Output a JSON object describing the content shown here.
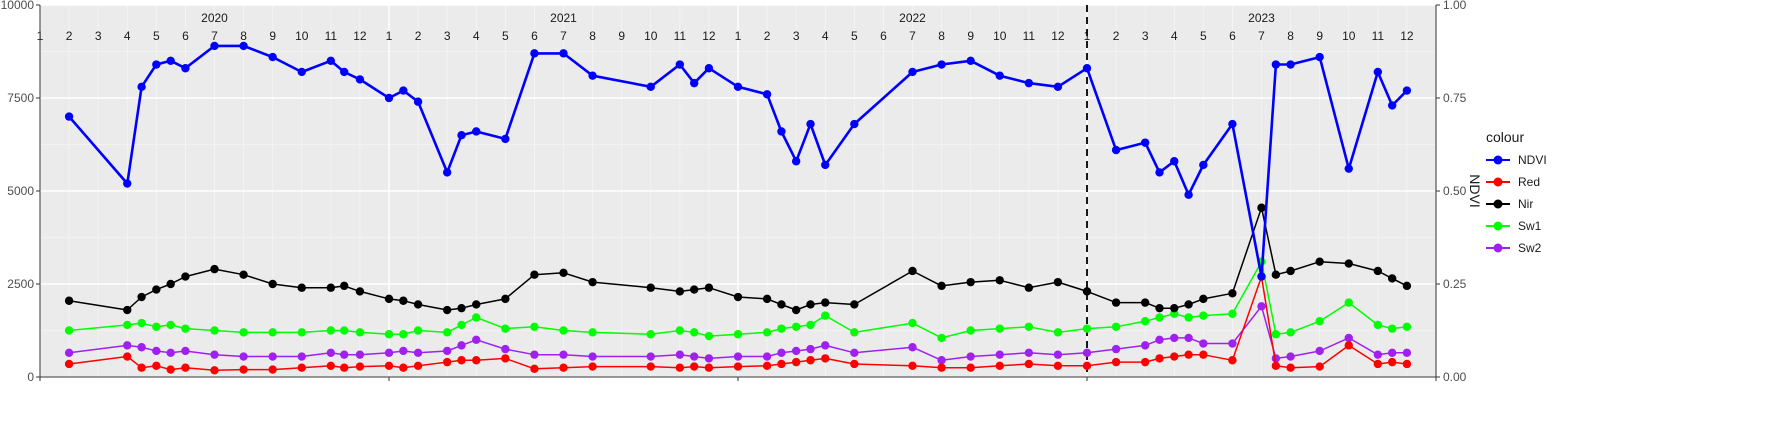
{
  "chart_data": {
    "type": "line",
    "ylabel_right": "NDVI",
    "y_left_ticks": [
      "0",
      "2500",
      "5000",
      "7500",
      "10000"
    ],
    "y_left_lim": [
      0,
      10000
    ],
    "y_right_ticks": [
      "0.00",
      "0.25",
      "0.50",
      "0.75",
      "1.00"
    ],
    "y_right_lim": [
      0,
      1
    ],
    "x_lim": [
      "2020-01-01",
      "2024-01-01"
    ],
    "years": [
      "2020",
      "2021",
      "2022",
      "2023"
    ],
    "months": [
      "1",
      "2",
      "3",
      "4",
      "5",
      "6",
      "7",
      "8",
      "9",
      "10",
      "11",
      "12"
    ],
    "vline_date": "2023-01-01",
    "legend": {
      "title": "colour",
      "placement": "right",
      "items": [
        {
          "label": "NDVI",
          "color": "#0000FF"
        },
        {
          "label": "Red",
          "color": "#FF0000"
        },
        {
          "label": "Nir",
          "color": "#000000"
        },
        {
          "label": "Sw1",
          "color": "#00FF00"
        },
        {
          "label": "Sw2",
          "color": "#A020F0"
        }
      ]
    },
    "dates": [
      "2020-02-01",
      "2020-04-01",
      "2020-04-16",
      "2020-05-01",
      "2020-05-16",
      "2020-06-01",
      "2020-07-01",
      "2020-08-01",
      "2020-09-01",
      "2020-10-01",
      "2020-11-01",
      "2020-11-15",
      "2020-12-01",
      "2021-01-01",
      "2021-01-16",
      "2021-02-01",
      "2021-03-01",
      "2021-03-16",
      "2021-04-01",
      "2021-05-01",
      "2021-06-01",
      "2021-07-01",
      "2021-08-01",
      "2021-10-01",
      "2021-11-01",
      "2021-11-16",
      "2021-12-01",
      "2022-01-01",
      "2022-02-01",
      "2022-02-16",
      "2022-03-01",
      "2022-03-16",
      "2022-04-01",
      "2022-05-01",
      "2022-07-01",
      "2022-08-01",
      "2022-09-01",
      "2022-10-01",
      "2022-11-01",
      "2022-12-01",
      "2023-01-01",
      "2023-02-01",
      "2023-03-01",
      "2023-03-16",
      "2023-04-01",
      "2023-04-16",
      "2023-05-01",
      "2023-06-01",
      "2023-07-01",
      "2023-07-16",
      "2023-08-01",
      "2023-09-01",
      "2023-10-01",
      "2023-11-01",
      "2023-11-16",
      "2023-12-01"
    ],
    "series": [
      {
        "name": "NDVI",
        "axis": "right",
        "values": [
          0.7,
          0.52,
          0.78,
          0.84,
          0.85,
          0.83,
          0.89,
          0.89,
          0.86,
          0.82,
          0.85,
          0.82,
          0.8,
          0.75,
          0.77,
          0.74,
          0.55,
          0.65,
          0.66,
          0.64,
          0.87,
          0.87,
          0.81,
          0.78,
          0.84,
          0.79,
          0.83,
          0.78,
          0.76,
          0.66,
          0.58,
          0.68,
          0.57,
          0.68,
          0.82,
          0.84,
          0.85,
          0.81,
          0.79,
          0.78,
          0.83,
          0.61,
          0.63,
          0.55,
          0.58,
          0.49,
          0.57,
          0.68,
          0.27,
          0.84,
          0.84,
          0.86,
          0.56,
          0.82,
          0.73,
          0.77
        ]
      },
      {
        "name": "Red",
        "axis": "left",
        "values": [
          350,
          550,
          250,
          300,
          200,
          250,
          180,
          200,
          200,
          250,
          300,
          250,
          280,
          300,
          250,
          300,
          400,
          450,
          450,
          500,
          220,
          250,
          280,
          280,
          250,
          280,
          250,
          280,
          300,
          350,
          400,
          450,
          500,
          350,
          300,
          250,
          250,
          300,
          350,
          300,
          300,
          400,
          400,
          500,
          550,
          600,
          600,
          450,
          2700,
          300,
          250,
          280,
          850,
          350,
          400,
          350
        ]
      },
      {
        "name": "Nir",
        "axis": "left",
        "values": [
          2050,
          1800,
          2150,
          2350,
          2500,
          2700,
          2900,
          2750,
          2500,
          2400,
          2400,
          2450,
          2300,
          2100,
          2050,
          1950,
          1800,
          1850,
          1950,
          2100,
          2750,
          2800,
          2550,
          2400,
          2300,
          2350,
          2400,
          2150,
          2100,
          1950,
          1800,
          1950,
          2000,
          1950,
          2850,
          2450,
          2550,
          2600,
          2400,
          2550,
          2300,
          2000,
          2000,
          1850,
          1850,
          1950,
          2100,
          2250,
          4550,
          2750,
          2850,
          3100,
          3050,
          2850,
          2650,
          2450
        ]
      },
      {
        "name": "Sw1",
        "axis": "left",
        "values": [
          1250,
          1400,
          1450,
          1350,
          1400,
          1300,
          1250,
          1200,
          1200,
          1200,
          1250,
          1250,
          1200,
          1150,
          1150,
          1250,
          1200,
          1400,
          1600,
          1300,
          1350,
          1250,
          1200,
          1150,
          1250,
          1200,
          1100,
          1150,
          1200,
          1300,
          1350,
          1400,
          1650,
          1200,
          1450,
          1050,
          1250,
          1300,
          1350,
          1200,
          1300,
          1350,
          1500,
          1600,
          1700,
          1600,
          1650,
          1700,
          3100,
          1150,
          1200,
          1500,
          2000,
          1400,
          1300,
          1350
        ]
      },
      {
        "name": "Sw2",
        "axis": "left",
        "values": [
          650,
          850,
          800,
          700,
          650,
          700,
          600,
          550,
          550,
          550,
          650,
          600,
          600,
          650,
          700,
          650,
          700,
          850,
          1000,
          750,
          600,
          600,
          550,
          550,
          600,
          550,
          500,
          550,
          550,
          650,
          700,
          750,
          850,
          650,
          800,
          450,
          550,
          600,
          650,
          600,
          650,
          750,
          850,
          1000,
          1050,
          1050,
          900,
          900,
          1900,
          500,
          550,
          700,
          1050,
          600,
          650,
          650
        ]
      }
    ]
  }
}
